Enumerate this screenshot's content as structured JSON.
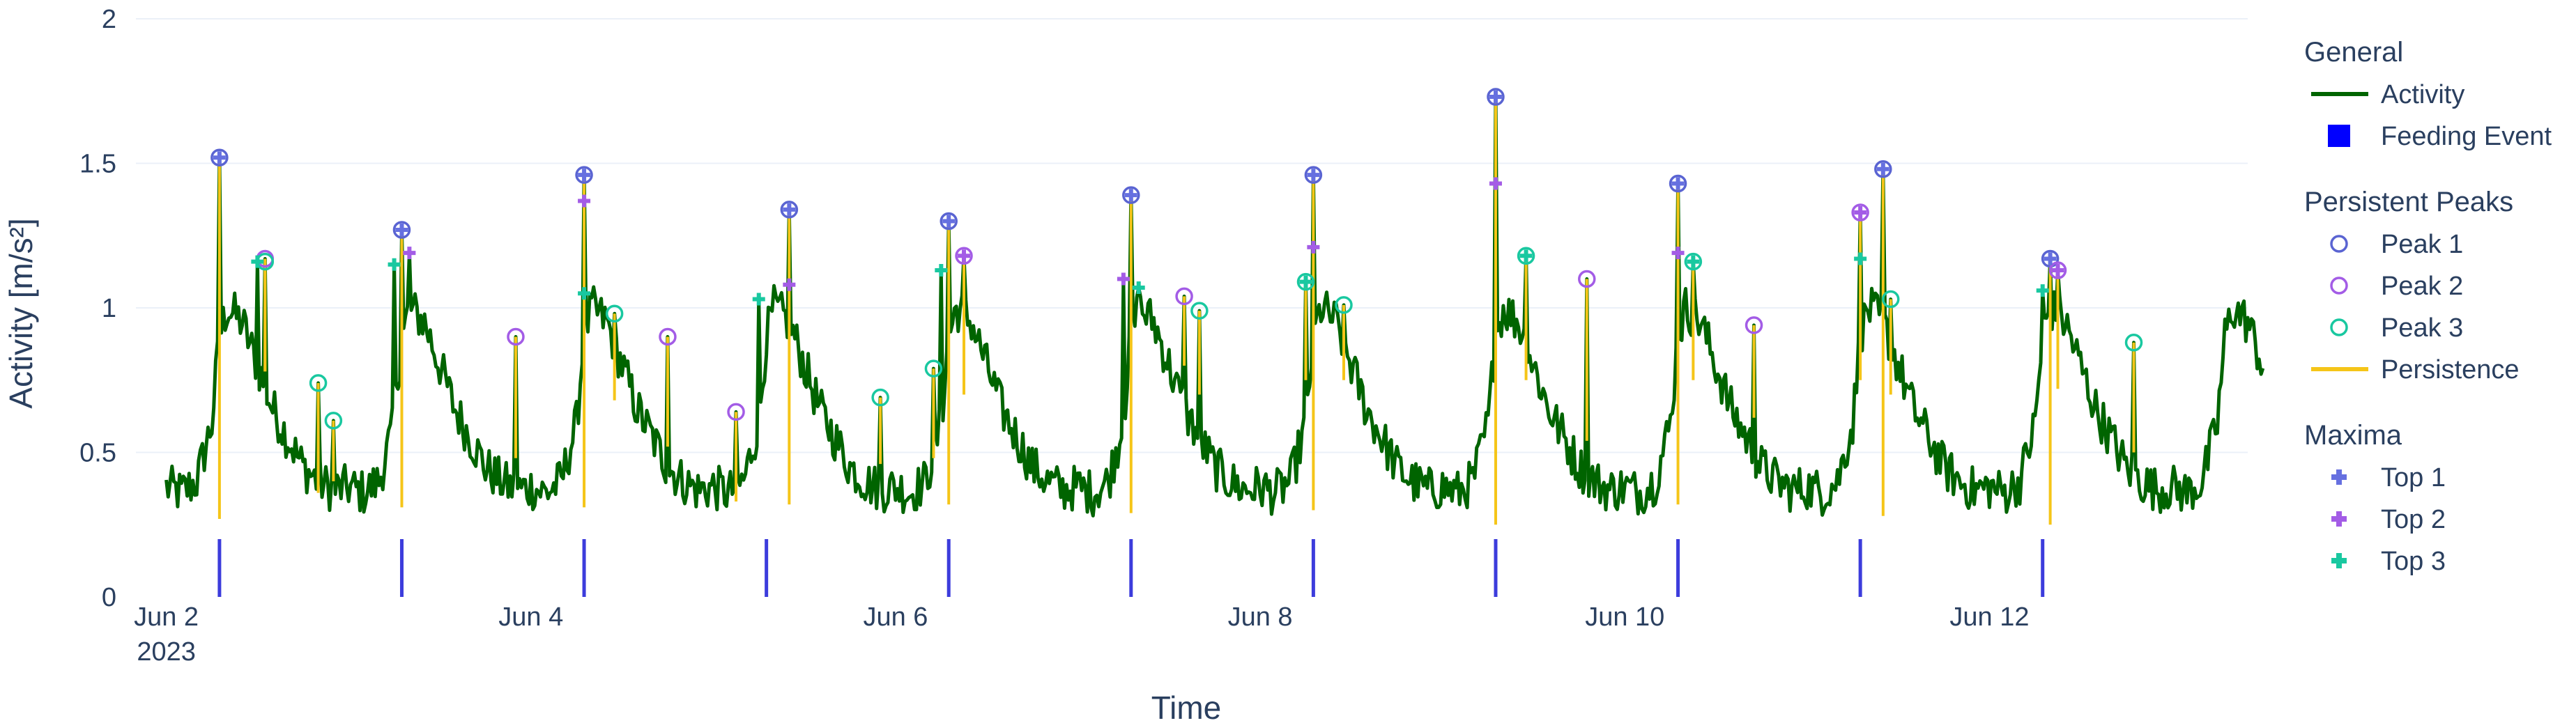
{
  "chart_data": {
    "type": "line",
    "xlabel": "Time",
    "ylabel": "Activity [m/s²]",
    "ylim": [
      0,
      2
    ],
    "yticks": [
      0,
      0.5,
      1,
      1.5,
      2
    ],
    "ytick_labels": [
      "0",
      "0.5",
      "1",
      "1.5",
      "2"
    ],
    "xlim": [
      "2023-06-01 20:00",
      "2023-06-13 10:00"
    ],
    "xticks": [
      {
        "date": "2023-06-02",
        "label": "Jun 2",
        "sublabel": "2023"
      },
      {
        "date": "2023-06-04",
        "label": "Jun 4",
        "sublabel": ""
      },
      {
        "date": "2023-06-06",
        "label": "Jun 6",
        "sublabel": ""
      },
      {
        "date": "2023-06-08",
        "label": "Jun 8",
        "sublabel": ""
      },
      {
        "date": "2023-06-10",
        "label": "Jun 10",
        "sublabel": ""
      },
      {
        "date": "2023-06-12",
        "label": "Jun 12",
        "sublabel": ""
      }
    ],
    "grid": true,
    "legend_placement": "right",
    "colors": {
      "activity": "#006400",
      "feeding": "#0000ff",
      "feeding_marker": "#3c3cdc",
      "persistence": "#f5c518",
      "peak1": "#5a64d2",
      "peak2": "#a35ce6",
      "peak3": "#19c8a0",
      "top1": "#6670e0",
      "top2": "#a35ce6",
      "top3": "#19c8a0",
      "grid": "#ebf0f8",
      "text": "#2a3f5f"
    },
    "legend": {
      "groups": [
        {
          "title": "General",
          "items": [
            {
              "label": "Activity",
              "symbol": "line",
              "color_key": "activity"
            },
            {
              "label": "Feeding Event",
              "symbol": "square",
              "color_key": "feeding"
            }
          ]
        },
        {
          "title": "Persistent Peaks",
          "items": [
            {
              "label": "Peak 1",
              "symbol": "circle",
              "color_key": "peak1"
            },
            {
              "label": "Peak 2",
              "symbol": "circle",
              "color_key": "peak2"
            },
            {
              "label": "Peak 3",
              "symbol": "circle",
              "color_key": "peak3"
            },
            {
              "label": "Persistence",
              "symbol": "line",
              "color_key": "persistence"
            }
          ]
        },
        {
          "title": "Maxima",
          "items": [
            {
              "label": "Top 1",
              "symbol": "cross",
              "color_key": "top1"
            },
            {
              "label": "Top 2",
              "symbol": "cross",
              "color_key": "top2"
            },
            {
              "label": "Top 3",
              "symbol": "cross",
              "color_key": "top3"
            }
          ]
        }
      ]
    },
    "feeding_events": [
      "2023-06-02 07:00",
      "2023-06-03 07:00",
      "2023-06-04 07:00",
      "2023-06-05 07:00",
      "2023-06-06 07:00",
      "2023-06-07 07:00",
      "2023-06-08 07:00",
      "2023-06-09 07:00",
      "2023-06-10 07:00",
      "2023-06-11 07:00",
      "2023-06-12 07:00"
    ],
    "activity_profile": {
      "start_date": "2023-06-02",
      "days": 11,
      "baseline_night": 0.38,
      "daily_shape_hours": [
        0,
        2,
        4,
        6,
        7,
        8,
        10,
        12,
        14,
        16,
        18,
        20,
        22,
        24
      ],
      "daily_shape_values": [
        0.38,
        0.36,
        0.4,
        0.6,
        0.9,
        1.0,
        0.95,
        0.8,
        0.65,
        0.55,
        0.45,
        0.4,
        0.37,
        0.38
      ]
    },
    "peaks": [
      {
        "rank": 1,
        "time": "2023-06-02 07:00",
        "value": 1.52,
        "base": 0.27
      },
      {
        "rank": 2,
        "time": "2023-06-02 13:00",
        "value": 1.17,
        "base": 0.78
      },
      {
        "rank": 3,
        "time": "2023-06-02 13:00",
        "value": 1.16,
        "base": 0.78
      },
      {
        "rank": 3,
        "time": "2023-06-02 20:00",
        "value": 0.74,
        "base": 0.36
      },
      {
        "rank": 3,
        "time": "2023-06-02 22:00",
        "value": 0.61,
        "base": 0.4
      },
      {
        "rank": 1,
        "time": "2023-06-03 07:00",
        "value": 1.27,
        "base": 0.31
      },
      {
        "rank": 2,
        "time": "2023-06-03 22:00",
        "value": 0.9,
        "base": 0.48
      },
      {
        "rank": 1,
        "time": "2023-06-04 07:00",
        "value": 1.46,
        "base": 0.31
      },
      {
        "rank": 3,
        "time": "2023-06-04 11:00",
        "value": 0.98,
        "base": 0.68
      },
      {
        "rank": 2,
        "time": "2023-06-04 18:00",
        "value": 0.9,
        "base": 0.52
      },
      {
        "rank": 2,
        "time": "2023-06-05 03:00",
        "value": 0.64,
        "base": 0.33
      },
      {
        "rank": 1,
        "time": "2023-06-05 10:00",
        "value": 1.34,
        "base": 0.32
      },
      {
        "rank": 3,
        "time": "2023-06-05 22:00",
        "value": 0.69,
        "base": 0.46
      },
      {
        "rank": 3,
        "time": "2023-06-06 05:00",
        "value": 0.79,
        "base": 0.48
      },
      {
        "rank": 1,
        "time": "2023-06-06 07:00",
        "value": 1.3,
        "base": 0.32
      },
      {
        "rank": 2,
        "time": "2023-06-06 09:00",
        "value": 1.18,
        "base": 0.7
      },
      {
        "rank": 1,
        "time": "2023-06-07 07:00",
        "value": 1.39,
        "base": 0.29
      },
      {
        "rank": 2,
        "time": "2023-06-07 14:00",
        "value": 1.04,
        "base": 0.8
      },
      {
        "rank": 3,
        "time": "2023-06-07 16:00",
        "value": 0.99,
        "base": 0.7
      },
      {
        "rank": 3,
        "time": "2023-06-08 06:00",
        "value": 1.09,
        "base": 0.75
      },
      {
        "rank": 1,
        "time": "2023-06-08 07:00",
        "value": 1.46,
        "base": 0.3
      },
      {
        "rank": 3,
        "time": "2023-06-08 11:00",
        "value": 1.01,
        "base": 0.75
      },
      {
        "rank": 1,
        "time": "2023-06-09 07:00",
        "value": 1.73,
        "base": 0.25
      },
      {
        "rank": 3,
        "time": "2023-06-09 11:00",
        "value": 1.18,
        "base": 0.75
      },
      {
        "rank": 2,
        "time": "2023-06-09 19:00",
        "value": 1.1,
        "base": 0.54
      },
      {
        "rank": 1,
        "time": "2023-06-10 07:00",
        "value": 1.43,
        "base": 0.32
      },
      {
        "rank": 3,
        "time": "2023-06-10 09:00",
        "value": 1.16,
        "base": 0.75
      },
      {
        "rank": 2,
        "time": "2023-06-10 17:00",
        "value": 0.94,
        "base": 0.62
      },
      {
        "rank": 2,
        "time": "2023-06-11 07:00",
        "value": 1.33,
        "base": 0.75
      },
      {
        "rank": 1,
        "time": "2023-06-11 10:00",
        "value": 1.48,
        "base": 0.28
      },
      {
        "rank": 3,
        "time": "2023-06-11 11:00",
        "value": 1.03,
        "base": 0.7
      },
      {
        "rank": 1,
        "time": "2023-06-12 08:00",
        "value": 1.17,
        "base": 0.25
      },
      {
        "rank": 2,
        "time": "2023-06-12 09:00",
        "value": 1.13,
        "base": 0.72
      },
      {
        "rank": 3,
        "time": "2023-06-12 19:00",
        "value": 0.88,
        "base": 0.5
      }
    ],
    "maxima": [
      {
        "rank": 1,
        "time": "2023-06-02 07:00",
        "value": 1.52
      },
      {
        "rank": 3,
        "time": "2023-06-02 12:00",
        "value": 1.16
      },
      {
        "rank": 3,
        "time": "2023-06-03 06:00",
        "value": 1.15
      },
      {
        "rank": 1,
        "time": "2023-06-03 07:00",
        "value": 1.27
      },
      {
        "rank": 2,
        "time": "2023-06-03 08:00",
        "value": 1.19
      },
      {
        "rank": 3,
        "time": "2023-06-04 07:00",
        "value": 1.05
      },
      {
        "rank": 1,
        "time": "2023-06-04 07:00",
        "value": 1.46
      },
      {
        "rank": 2,
        "time": "2023-06-04 07:00",
        "value": 1.37
      },
      {
        "rank": 3,
        "time": "2023-06-05 06:00",
        "value": 1.03
      },
      {
        "rank": 1,
        "time": "2023-06-05 10:00",
        "value": 1.34
      },
      {
        "rank": 2,
        "time": "2023-06-05 10:00",
        "value": 1.08
      },
      {
        "rank": 3,
        "time": "2023-06-06 06:00",
        "value": 1.13
      },
      {
        "rank": 1,
        "time": "2023-06-06 07:00",
        "value": 1.3
      },
      {
        "rank": 2,
        "time": "2023-06-06 09:00",
        "value": 1.18
      },
      {
        "rank": 2,
        "time": "2023-06-07 06:00",
        "value": 1.1
      },
      {
        "rank": 1,
        "time": "2023-06-07 07:00",
        "value": 1.39
      },
      {
        "rank": 3,
        "time": "2023-06-07 08:00",
        "value": 1.07
      },
      {
        "rank": 3,
        "time": "2023-06-08 06:00",
        "value": 1.09
      },
      {
        "rank": 1,
        "time": "2023-06-08 07:00",
        "value": 1.46
      },
      {
        "rank": 2,
        "time": "2023-06-08 07:00",
        "value": 1.21
      },
      {
        "rank": 1,
        "time": "2023-06-09 07:00",
        "value": 1.73
      },
      {
        "rank": 2,
        "time": "2023-06-09 07:00",
        "value": 1.43
      },
      {
        "rank": 3,
        "time": "2023-06-09 11:00",
        "value": 1.18
      },
      {
        "rank": 1,
        "time": "2023-06-10 07:00",
        "value": 1.43
      },
      {
        "rank": 2,
        "time": "2023-06-10 07:00",
        "value": 1.19
      },
      {
        "rank": 3,
        "time": "2023-06-10 09:00",
        "value": 1.16
      },
      {
        "rank": 2,
        "time": "2023-06-11 07:00",
        "value": 1.33
      },
      {
        "rank": 3,
        "time": "2023-06-11 07:00",
        "value": 1.17
      },
      {
        "rank": 1,
        "time": "2023-06-11 10:00",
        "value": 1.48
      },
      {
        "rank": 3,
        "time": "2023-06-12 07:00",
        "value": 1.06
      },
      {
        "rank": 1,
        "time": "2023-06-12 08:00",
        "value": 1.17
      },
      {
        "rank": 2,
        "time": "2023-06-12 09:00",
        "value": 1.13
      }
    ]
  }
}
